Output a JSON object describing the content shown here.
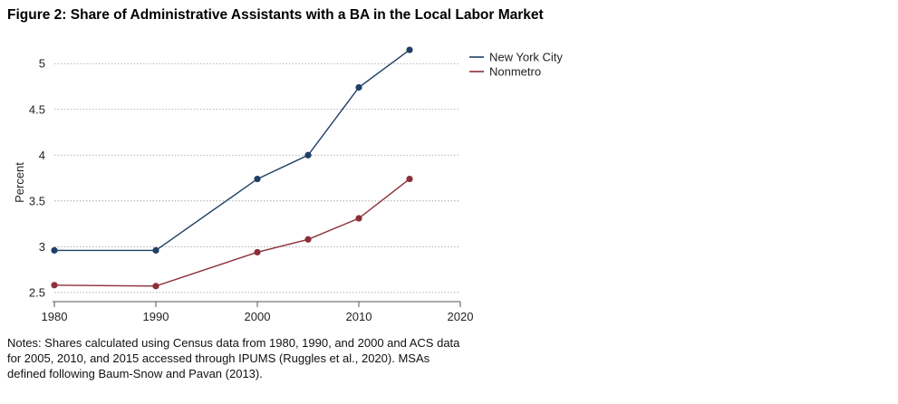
{
  "figure": {
    "title": "Figure 2: Share of Administrative Assistants with a BA in the Local Labor Market",
    "notes": "Notes: Shares calculated using Census data from 1980, 1990, and 2000 and ACS data for 2005, 2010, and 2015 accessed through IPUMS (Ruggles et al., 2020). MSAs defined following Baum-Snow and Pavan (2013)."
  },
  "chart_data": {
    "type": "line",
    "title": "Figure 2: Share of Administrative Assistants with a BA in the Local Labor Market",
    "xlabel": "",
    "ylabel": "Percent",
    "xlim": [
      1980,
      2020
    ],
    "ylim": [
      2.4,
      5.2
    ],
    "x_ticks": [
      1980,
      1990,
      2000,
      2010,
      2020
    ],
    "y_ticks": [
      2.5,
      3,
      3.5,
      4,
      4.5,
      5
    ],
    "x_tick_labels": [
      "1980",
      "1990",
      "2000",
      "2010",
      "2020"
    ],
    "y_tick_labels": [
      "2.5",
      "3",
      "3.5",
      "4",
      "4.5",
      "5"
    ],
    "grid": "horizontal dotted",
    "legend_position": "top-right, outside plot",
    "series": [
      {
        "name": "New York City",
        "color": "#1f3f66",
        "x": [
          1980,
          1990,
          2000,
          2005,
          2010,
          2015
        ],
        "y": [
          2.96,
          2.96,
          3.74,
          4.0,
          4.74,
          5.15
        ]
      },
      {
        "name": "Nonmetro",
        "color": "#8c2f39",
        "x": [
          1980,
          1990,
          2000,
          2005,
          2010,
          2015
        ],
        "y": [
          2.58,
          2.57,
          2.94,
          3.08,
          3.31,
          3.74
        ]
      }
    ]
  }
}
